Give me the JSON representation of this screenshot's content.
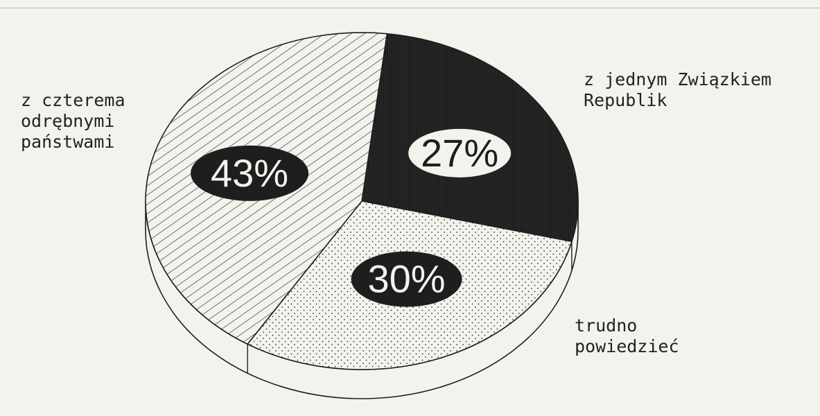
{
  "chart_data": {
    "type": "pie",
    "title": "",
    "slices": [
      {
        "label": "z jednym Związkiem Republik",
        "value": 27,
        "display": "27%",
        "pattern": "vertical-lines-dark"
      },
      {
        "label": "trudno powiedzieć",
        "value": 30,
        "display": "30%",
        "pattern": "dots"
      },
      {
        "label": "z czterema odrębnymi państwami",
        "value": 43,
        "display": "43%",
        "pattern": "diagonal-hatch"
      }
    ],
    "style": "3d-pie",
    "legend": "none",
    "colors": {
      "ink": "#1e1e1e",
      "paper": "#f4f2ec"
    }
  },
  "labels": {
    "slice_0_lines": [
      "z jednym Związkiem",
      "Republik"
    ],
    "slice_1_lines": [
      "trudno",
      "powiedzieć"
    ],
    "slice_2_lines": [
      "z czterema",
      "odrębnymi",
      "państwami"
    ]
  }
}
